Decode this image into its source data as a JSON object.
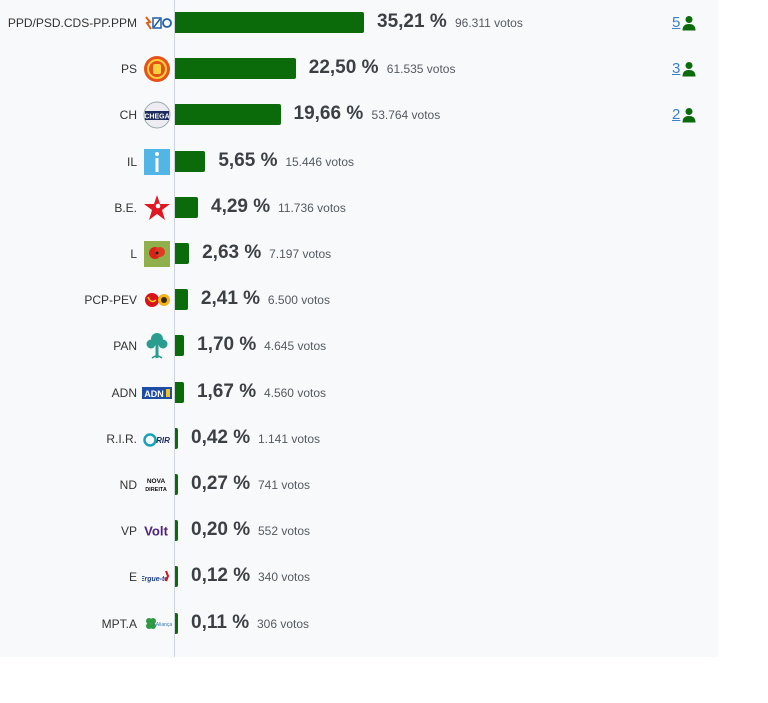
{
  "colors": {
    "bar": "#0b6b0b",
    "seat_link": "#3b82c8",
    "person_icon": "#0b6b0b"
  },
  "chart_data": {
    "type": "bar",
    "orientation": "horizontal",
    "categories": [
      "PPD/PSD.CDS-PP.PPM",
      "PS",
      "CH",
      "IL",
      "B.E.",
      "L",
      "PCP-PEV",
      "PAN",
      "ADN",
      "R.I.R.",
      "ND",
      "VP",
      "E",
      "MPT.A"
    ],
    "series": [
      {
        "values": [
          35.21,
          22.5,
          19.66,
          5.65,
          4.29,
          2.63,
          2.41,
          1.7,
          1.67,
          0.42,
          0.27,
          0.2,
          0.12,
          0.11
        ]
      }
    ],
    "xlim": [
      0,
      35.21
    ],
    "grid": false
  },
  "rows": [
    {
      "party": "PPD/PSD.CDS-PP.PPM",
      "pct": "35,21 %",
      "votes": "96.311 votos",
      "seats": "5",
      "logo": "ad-coalition-icon"
    },
    {
      "party": "PS",
      "pct": "22,50 %",
      "votes": "61.535 votos",
      "seats": "3",
      "logo": "ps-fist-rose-icon"
    },
    {
      "party": "CH",
      "pct": "19,66 %",
      "votes": "53.764 votos",
      "seats": "2",
      "logo": "chega-icon"
    },
    {
      "party": "IL",
      "pct": "5,65 %",
      "votes": "15.446 votos",
      "seats": "",
      "logo": "il-icon"
    },
    {
      "party": "B.E.",
      "pct": "4,29 %",
      "votes": "11.736 votos",
      "seats": "",
      "logo": "be-star-icon"
    },
    {
      "party": "L",
      "pct": "2,63 %",
      "votes": "7.197 votos",
      "seats": "",
      "logo": "livre-poppy-icon"
    },
    {
      "party": "PCP-PEV",
      "pct": "2,41 %",
      "votes": "6.500 votos",
      "seats": "",
      "logo": "cdu-hammer-sickle-icon"
    },
    {
      "party": "PAN",
      "pct": "1,70 %",
      "votes": "4.645 votos",
      "seats": "",
      "logo": "pan-tree-icon"
    },
    {
      "party": "ADN",
      "pct": "1,67 %",
      "votes": "4.560 votos",
      "seats": "",
      "logo": "adn-icon"
    },
    {
      "party": "R.I.R.",
      "pct": "0,42 %",
      "votes": "1.141 votos",
      "seats": "",
      "logo": "rir-icon"
    },
    {
      "party": "ND",
      "pct": "0,27 %",
      "votes": "741 votos",
      "seats": "",
      "logo": "nova-direita-icon"
    },
    {
      "party": "VP",
      "pct": "0,20 %",
      "votes": "552 votos",
      "seats": "",
      "logo": "volt-icon"
    },
    {
      "party": "E",
      "pct": "0,12 %",
      "votes": "340 votos",
      "seats": "",
      "logo": "ergue-te-icon"
    },
    {
      "party": "MPT.A",
      "pct": "0,11 %",
      "votes": "306 votos",
      "seats": "",
      "logo": "mpt-clover-icon"
    }
  ],
  "logo_text": {
    "chega": "CHEGA",
    "adn": "ADN",
    "rir": "RIR",
    "nd_line1": "NOVA",
    "nd_line2": "DIREITA",
    "volt": "Volt",
    "ergue": "Ergue-te",
    "mpt": "Aliança"
  }
}
